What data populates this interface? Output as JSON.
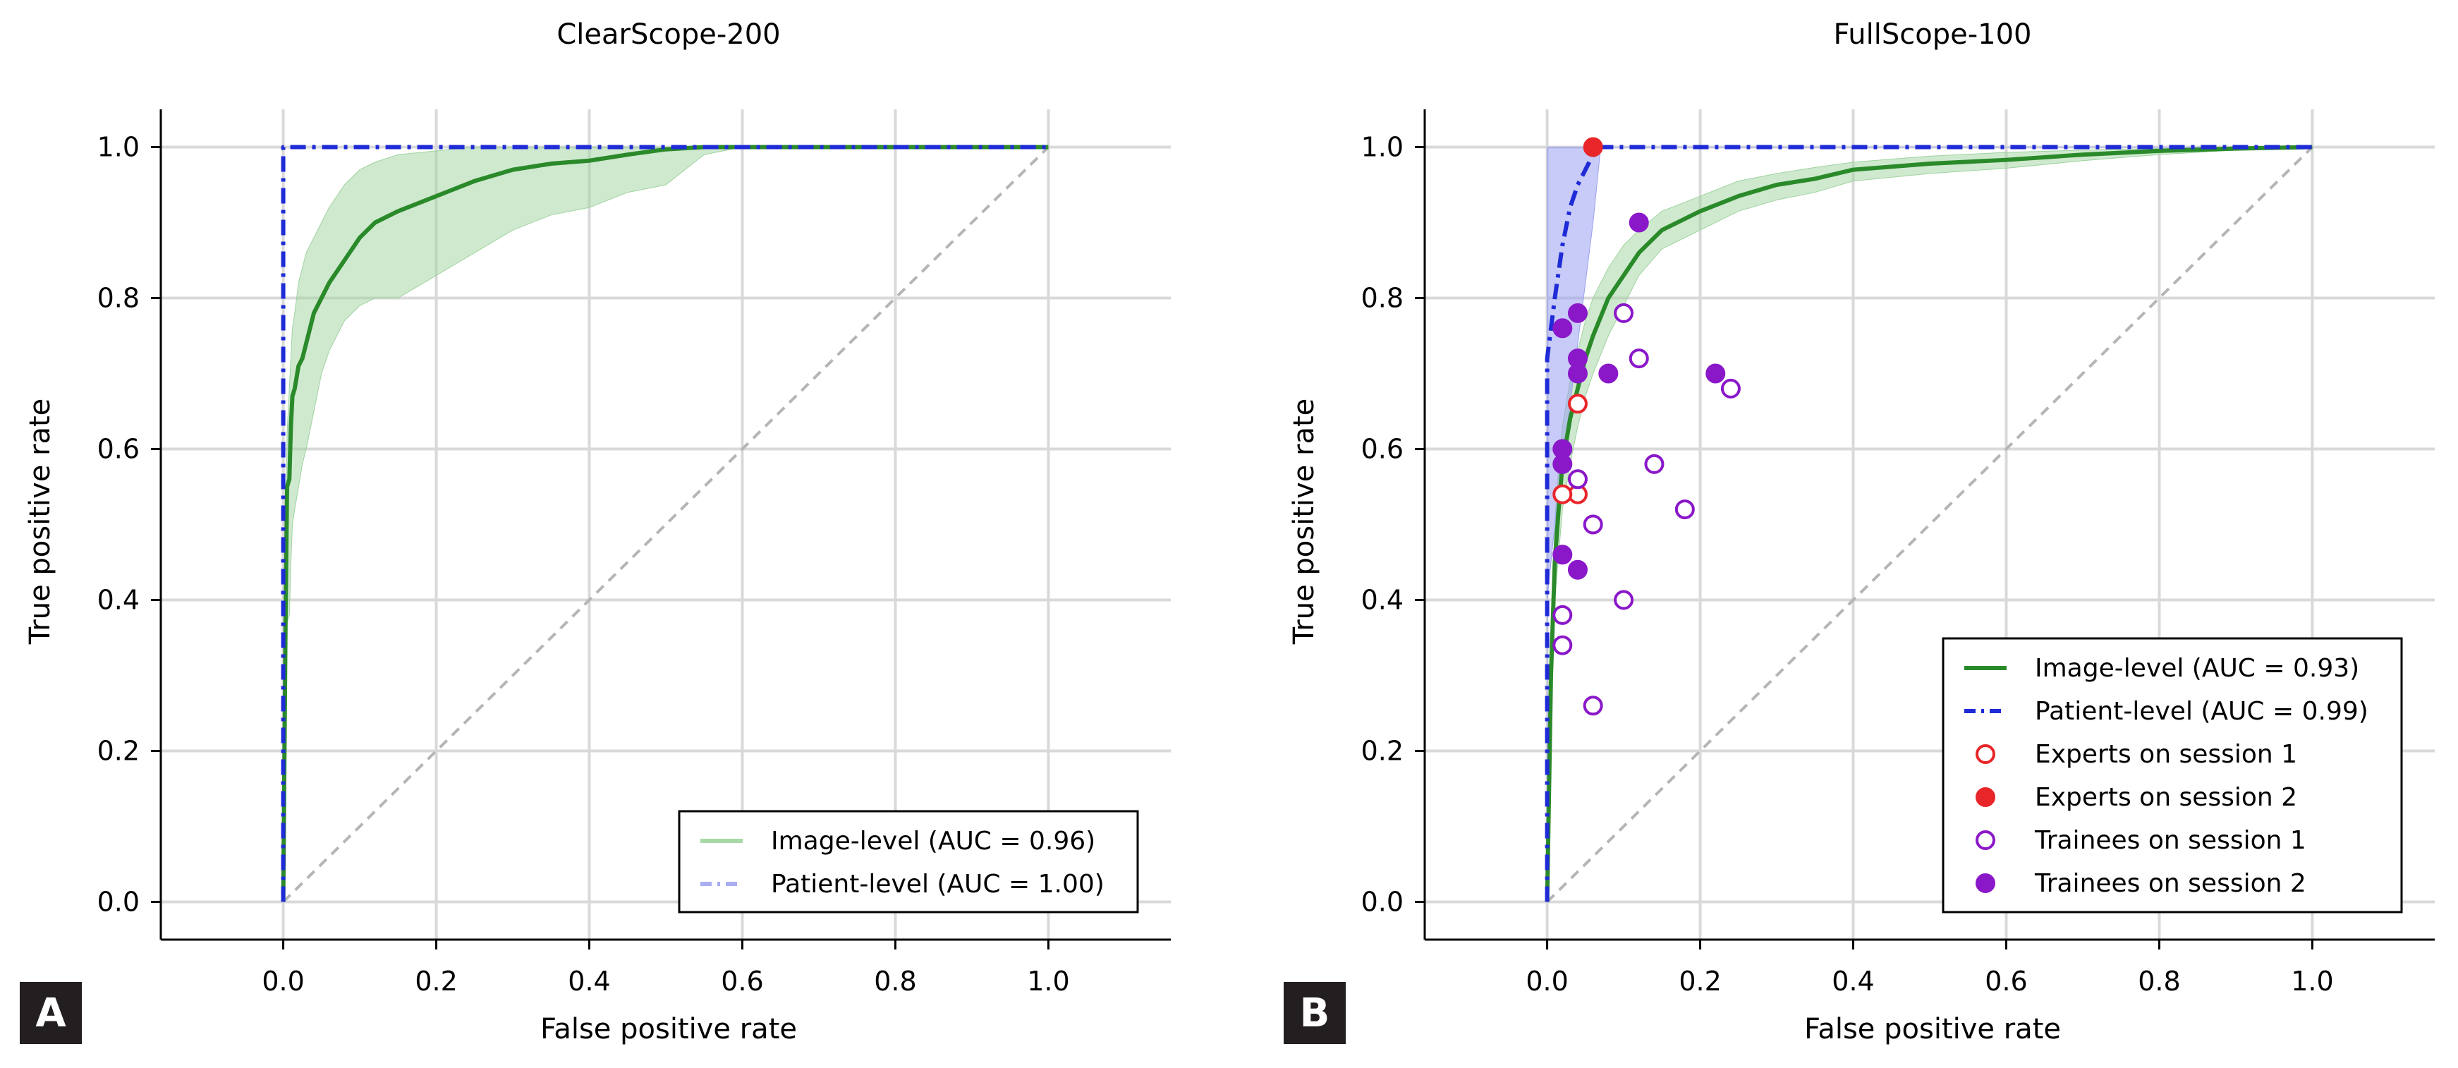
{
  "figure": {
    "panels": [
      {
        "letter": "A",
        "title": "ClearScope-200"
      },
      {
        "letter": "B",
        "title": "FullScope-100"
      }
    ]
  },
  "chart_data": [
    {
      "type": "line",
      "title": "ClearScope-200",
      "xlabel": "False positive rate",
      "ylabel": "True positive rate",
      "xlim": [
        -0.16,
        1.16
      ],
      "ylim": [
        -0.05,
        1.05
      ],
      "xticks": [
        "0.0",
        "0.2",
        "0.4",
        "0.6",
        "0.8",
        "1.0"
      ],
      "yticks": [
        "0.0",
        "0.2",
        "0.4",
        "0.6",
        "0.8",
        "1.0"
      ],
      "grid": true,
      "legend_position": "bottom-right",
      "colors": {
        "image": "#2a8a2a",
        "image_band": "#9fd39f",
        "patient": "#1f2bd6",
        "patient_band": "#9aa0f0",
        "diagonal": "#b5b5b5"
      },
      "series": [
        {
          "name": "Image-level (AUC = 0.96)",
          "style": "solid",
          "x": [
            0,
            0.003,
            0.005,
            0.008,
            0.01,
            0.012,
            0.015,
            0.02,
            0.025,
            0.03,
            0.04,
            0.05,
            0.06,
            0.08,
            0.1,
            0.12,
            0.15,
            0.2,
            0.25,
            0.3,
            0.35,
            0.4,
            0.45,
            0.5,
            0.55,
            0.6,
            0.8,
            1.0
          ],
          "y": [
            0,
            0.37,
            0.55,
            0.56,
            0.63,
            0.67,
            0.68,
            0.71,
            0.72,
            0.74,
            0.78,
            0.8,
            0.82,
            0.85,
            0.88,
            0.9,
            0.915,
            0.935,
            0.955,
            0.97,
            0.978,
            0.982,
            0.99,
            0.997,
            1.0,
            1.0,
            1.0,
            1.0
          ],
          "band_upper": [
            0,
            0.5,
            0.62,
            0.68,
            0.72,
            0.76,
            0.78,
            0.82,
            0.84,
            0.86,
            0.88,
            0.9,
            0.92,
            0.95,
            0.97,
            0.98,
            0.99,
            0.995,
            1.0,
            1.0,
            1.0,
            1.0,
            1.0,
            1.0,
            1.0,
            1.0,
            1.0,
            1.0
          ],
          "band_lower": [
            0,
            0.2,
            0.37,
            0.38,
            0.45,
            0.5,
            0.52,
            0.55,
            0.58,
            0.6,
            0.65,
            0.7,
            0.73,
            0.77,
            0.79,
            0.8,
            0.8,
            0.83,
            0.86,
            0.89,
            0.91,
            0.92,
            0.94,
            0.95,
            0.99,
            1.0,
            1.0,
            1.0
          ]
        },
        {
          "name": "Patient-level (AUC = 1.00)",
          "style": "dashdot",
          "x": [
            0,
            0,
            1.0
          ],
          "y": [
            0,
            1.0,
            1.0
          ]
        }
      ]
    },
    {
      "type": "line",
      "title": "FullScope-100",
      "xlabel": "False positive rate",
      "ylabel": "True positive rate",
      "xlim": [
        -0.16,
        1.16
      ],
      "ylim": [
        -0.05,
        1.05
      ],
      "xticks": [
        "0.0",
        "0.2",
        "0.4",
        "0.6",
        "0.8",
        "1.0"
      ],
      "yticks": [
        "0.0",
        "0.2",
        "0.4",
        "0.6",
        "0.8",
        "1.0"
      ],
      "grid": true,
      "legend_position": "bottom-right",
      "colors": {
        "image": "#2a8a2a",
        "image_band": "#9fd39f",
        "patient": "#1f2bd6",
        "patient_band": "#9aa0f0",
        "experts": "#e8262a",
        "trainees": "#8a18c9",
        "diagonal": "#b5b5b5"
      },
      "series": [
        {
          "name": "Image-level (AUC = 0.93)",
          "style": "solid",
          "x": [
            0,
            0.005,
            0.01,
            0.015,
            0.02,
            0.03,
            0.04,
            0.05,
            0.06,
            0.08,
            0.1,
            0.12,
            0.15,
            0.2,
            0.25,
            0.3,
            0.35,
            0.4,
            0.5,
            0.6,
            0.7,
            0.8,
            0.9,
            1.0
          ],
          "y": [
            0,
            0.3,
            0.45,
            0.52,
            0.58,
            0.64,
            0.68,
            0.72,
            0.75,
            0.8,
            0.83,
            0.86,
            0.89,
            0.915,
            0.935,
            0.95,
            0.958,
            0.97,
            0.978,
            0.983,
            0.99,
            0.995,
            0.998,
            1.0
          ],
          "band_upper": [
            0,
            0.35,
            0.5,
            0.58,
            0.63,
            0.69,
            0.73,
            0.77,
            0.8,
            0.84,
            0.87,
            0.89,
            0.915,
            0.935,
            0.955,
            0.965,
            0.973,
            0.98,
            0.988,
            0.993,
            0.996,
            0.998,
            1.0,
            1.0
          ],
          "band_lower": [
            0,
            0.25,
            0.4,
            0.46,
            0.52,
            0.58,
            0.63,
            0.67,
            0.7,
            0.75,
            0.79,
            0.83,
            0.865,
            0.89,
            0.915,
            0.93,
            0.94,
            0.955,
            0.965,
            0.972,
            0.982,
            0.99,
            0.996,
            1.0
          ]
        },
        {
          "name": "Patient-level (AUC = 0.99)",
          "style": "dashdot",
          "x": [
            0,
            0,
            0.01,
            0.02,
            0.03,
            0.04,
            0.05,
            0.06,
            0.07,
            1.0
          ],
          "y": [
            0,
            0.72,
            0.8,
            0.87,
            0.92,
            0.95,
            0.97,
            0.99,
            1.0,
            1.0
          ],
          "band_upper": [
            1.0,
            1.0,
            1.0,
            1.0,
            1.0,
            1.0,
            1.0,
            1.0,
            1.0,
            1.0
          ],
          "band_lower": [
            0,
            0.4,
            0.5,
            0.58,
            0.66,
            0.74,
            0.82,
            0.9,
            1.0,
            1.0
          ]
        }
      ],
      "points": [
        {
          "name": "Experts on session 1",
          "marker": "open-circle",
          "x": [
            0.04,
            0.04,
            0.02
          ],
          "y": [
            0.66,
            0.54,
            0.54
          ]
        },
        {
          "name": "Experts on session 2",
          "marker": "filled-circle",
          "x": [
            0.06
          ],
          "y": [
            1.0
          ]
        },
        {
          "name": "Trainees on session 1",
          "marker": "open-circle",
          "x": [
            0.1,
            0.12,
            0.24,
            0.14,
            0.18,
            0.04,
            0.06,
            0.02,
            0.1,
            0.02,
            0.06
          ],
          "y": [
            0.78,
            0.72,
            0.68,
            0.58,
            0.52,
            0.56,
            0.5,
            0.38,
            0.4,
            0.34,
            0.26
          ]
        },
        {
          "name": "Trainees on session 2",
          "marker": "filled-circle",
          "x": [
            0.12,
            0.02,
            0.04,
            0.04,
            0.04,
            0.08,
            0.22,
            0.02,
            0.02,
            0.02,
            0.04
          ],
          "y": [
            0.9,
            0.76,
            0.78,
            0.72,
            0.7,
            0.7,
            0.7,
            0.6,
            0.58,
            0.46,
            0.44
          ]
        }
      ]
    }
  ]
}
